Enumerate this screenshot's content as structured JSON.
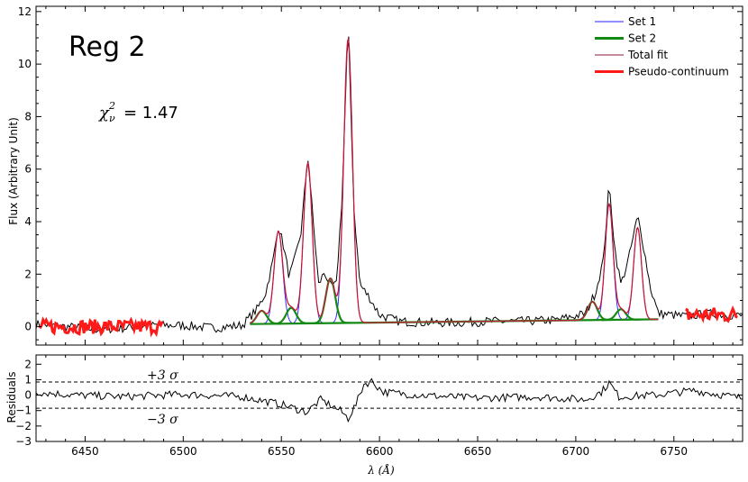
{
  "chart_data": {
    "type": "line",
    "annotation_title": "Reg 2",
    "chi2": {
      "symbol_base": "χ",
      "symbol_sup": "2",
      "symbol_sub": "ν",
      "text": "= 1.47"
    },
    "xlabel_text": "λ (Å)",
    "xlim": [
      6425,
      6785
    ],
    "xticks": [
      6450,
      6500,
      6550,
      6600,
      6650,
      6700,
      6750
    ],
    "top": {
      "ylabel": "Flux (Arbitrary Unit)",
      "ylim": [
        -0.7,
        12.2
      ],
      "yticks": [
        0,
        2,
        4,
        6,
        8,
        10,
        12
      ]
    },
    "residuals": {
      "ylabel": "Residuals",
      "ylim": [
        -3,
        2.6
      ],
      "yticks": [
        -3,
        -2,
        -1,
        0,
        1,
        2
      ],
      "plus_label": "+3 σ",
      "minus_label": "−3 σ",
      "sigma_lines": [
        0.85,
        -0.85
      ]
    },
    "legend": {
      "placement": "top-right",
      "entries": [
        {
          "name": "Set 1",
          "color": "#1f1fff"
        },
        {
          "name": "Set 2",
          "color": "#138a13"
        },
        {
          "name": "Total fit",
          "color": "#8b1a3a"
        },
        {
          "name": "Pseudo-continuum",
          "color": "#ff1a1a"
        }
      ]
    },
    "continuum": {
      "x": [
        6534,
        6742
      ],
      "y": [
        0.1,
        0.28
      ]
    },
    "fit_range": [
      6534,
      6742
    ],
    "set1_components": [
      {
        "center": 6548.5,
        "amp": 3.5,
        "sigma": 2.2
      },
      {
        "center": 6563.5,
        "amp": 6.1,
        "sigma": 2.2
      },
      {
        "center": 6584.0,
        "amp": 10.8,
        "sigma": 2.2
      },
      {
        "center": 6717.0,
        "amp": 4.4,
        "sigma": 2.0
      },
      {
        "center": 6731.5,
        "amp": 3.5,
        "sigma": 2.0
      }
    ],
    "set2_components": [
      {
        "center": 6540.0,
        "amp": 0.5,
        "sigma": 2.5
      },
      {
        "center": 6555.0,
        "amp": 0.6,
        "sigma": 2.5
      },
      {
        "center": 6575.0,
        "amp": 1.7,
        "sigma": 2.4
      },
      {
        "center": 6708.5,
        "amp": 0.7,
        "sigma": 2.4
      },
      {
        "center": 6723.0,
        "amp": 0.4,
        "sigma": 2.4
      }
    ],
    "observed_points": [
      [
        6425,
        0.1
      ],
      [
        6440,
        0.0
      ],
      [
        6455,
        -0.1
      ],
      [
        6470,
        -0.05
      ],
      [
        6485,
        0.05
      ],
      [
        6500,
        0.05
      ],
      [
        6515,
        -0.05
      ],
      [
        6530,
        0.05
      ],
      [
        6538,
        0.7
      ],
      [
        6542,
        1.3
      ],
      [
        6546,
        2.6
      ],
      [
        6548.5,
        3.9
      ],
      [
        6551,
        3.1
      ],
      [
        6554,
        1.9
      ],
      [
        6557,
        2.6
      ],
      [
        6560,
        3.6
      ],
      [
        6563.5,
        6.5
      ],
      [
        6566,
        4.2
      ],
      [
        6569,
        1.6
      ],
      [
        6572,
        2.1
      ],
      [
        6575,
        1.5
      ],
      [
        6578,
        1.6
      ],
      [
        6581,
        5.0
      ],
      [
        6584,
        11.6
      ],
      [
        6587,
        4.5
      ],
      [
        6590,
        1.6
      ],
      [
        6595,
        1.1
      ],
      [
        6600,
        0.45
      ],
      [
        6610,
        0.2
      ],
      [
        6625,
        0.15
      ],
      [
        6640,
        0.15
      ],
      [
        6655,
        0.2
      ],
      [
        6670,
        0.2
      ],
      [
        6690,
        0.25
      ],
      [
        6705,
        0.5
      ],
      [
        6710,
        1.3
      ],
      [
        6714,
        2.5
      ],
      [
        6717,
        5.4
      ],
      [
        6720,
        2.9
      ],
      [
        6723,
        1.6
      ],
      [
        6727,
        2.6
      ],
      [
        6731.5,
        4.2
      ],
      [
        6734,
        3.3
      ],
      [
        6738,
        1.5
      ],
      [
        6742,
        0.5
      ],
      [
        6755,
        0.4
      ],
      [
        6770,
        0.5
      ],
      [
        6785,
        0.4
      ]
    ],
    "residual_points": [
      [
        6425,
        0.2
      ],
      [
        6445,
        0.0
      ],
      [
        6470,
        -0.1
      ],
      [
        6500,
        0.05
      ],
      [
        6530,
        -0.1
      ],
      [
        6550,
        -0.6
      ],
      [
        6563,
        -1.1
      ],
      [
        6570,
        -0.3
      ],
      [
        6580,
        -1.0
      ],
      [
        6584,
        -1.5
      ],
      [
        6588,
        -0.6
      ],
      [
        6592,
        0.7
      ],
      [
        6596,
        0.9
      ],
      [
        6602,
        0.2
      ],
      [
        6620,
        0.0
      ],
      [
        6650,
        -0.2
      ],
      [
        6680,
        -0.1
      ],
      [
        6705,
        -0.3
      ],
      [
        6713,
        0.2
      ],
      [
        6717,
        0.8
      ],
      [
        6722,
        -0.1
      ],
      [
        6740,
        0.0
      ],
      [
        6760,
        0.3
      ],
      [
        6785,
        -0.2
      ]
    ]
  }
}
